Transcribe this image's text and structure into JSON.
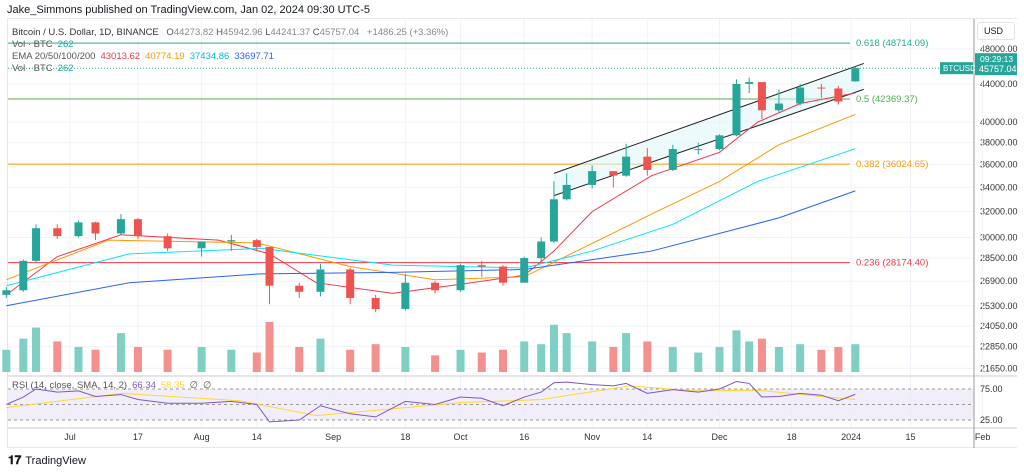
{
  "header": {
    "published": "Jake_Simmons published on TradingView.com, Jan 02, 2024 09:30 UTC-5"
  },
  "legend": {
    "symbol": "Bitcoin / U.S. Dollar, 1D, BINANCE",
    "o_label": "O",
    "o": "44273.82",
    "h_label": "H",
    "h": "45942.96",
    "l_label": "L",
    "l": "44241.37",
    "c_label": "C",
    "c": "45757.04",
    "change": "+1486.25 (+3.36%)",
    "vol1_label": "Vol · BTC",
    "vol1": "262",
    "ema_label": "EMA 20/50/100/200",
    "ema20": "43013.62",
    "ema50": "40774.19",
    "ema100": "37434.86",
    "ema200": "33697.71",
    "vol2_label": "Vol · BTC",
    "vol2": "262",
    "rsi_label": "RSI (14, close, SMA, 14, 2)",
    "rsi": "66.34",
    "rsi_sma": "58.35",
    "na1": "∅",
    "na2": "∅"
  },
  "price_axis": {
    "currency": "USD",
    "ticks": [
      "48000.00",
      "44000.00",
      "40000.00",
      "38000.00",
      "36000.00",
      "34000.00",
      "32000.00",
      "30000.00",
      "28500.00",
      "26900.00",
      "25300.00",
      "24050.00",
      "22850.00",
      "21650.00"
    ],
    "rsi_ticks": [
      "75.00",
      "25.00"
    ],
    "last_symbol": "BTCUSD",
    "last_price": "45757.04",
    "countdown": "09:29:13"
  },
  "time_axis": {
    "ticks": [
      [
        "2023-07-01",
        "Jul"
      ],
      [
        "2023-07-17",
        "17"
      ],
      [
        "2023-08-01",
        "Aug"
      ],
      [
        "2023-08-14",
        "14"
      ],
      [
        "2023-09-01",
        "Sep"
      ],
      [
        "2023-09-18",
        "18"
      ],
      [
        "2023-10-01",
        "Oct"
      ],
      [
        "2023-10-16",
        "16"
      ],
      [
        "2023-11-01",
        "Nov"
      ],
      [
        "2023-11-14",
        "14"
      ],
      [
        "2023-12-01",
        "Dec"
      ],
      [
        "2023-12-18",
        "18"
      ],
      [
        "2024-01-01",
        "2024"
      ],
      [
        "2024-01-15",
        "15"
      ],
      [
        "2024-02-01",
        "Feb"
      ]
    ]
  },
  "footer": {
    "brand": "TradingView"
  },
  "colors": {
    "up": "#26a69a",
    "down": "#ef5350",
    "ema20": "#f23645",
    "ema50": "#ff9800",
    "ema100": "#00e5ff",
    "ema200": "#2962ff",
    "rsi": "#7e57c2",
    "rsi_sma": "#fdd835"
  },
  "chart_data": {
    "type": "candlestick",
    "scale": "log",
    "ylim": [
      21650,
      50000
    ],
    "xlim": [
      "2023-06-15",
      "2024-02-04"
    ],
    "grid": true,
    "candles_columns": [
      "date",
      "open",
      "high",
      "low",
      "close",
      "volume",
      "rsi"
    ],
    "candles": [
      [
        "2023-06-16",
        26000,
        26500,
        25800,
        26300,
        40,
        50
      ],
      [
        "2023-06-20",
        26300,
        28400,
        26200,
        28300,
        60,
        62
      ],
      [
        "2023-06-23",
        28300,
        31000,
        28200,
        30700,
        80,
        75
      ],
      [
        "2023-06-28",
        30700,
        31000,
        29900,
        30100,
        55,
        70
      ],
      [
        "2023-07-03",
        30100,
        31300,
        30000,
        31150,
        45,
        72
      ],
      [
        "2023-07-07",
        31150,
        31200,
        29800,
        30300,
        40,
        63
      ],
      [
        "2023-07-13",
        30300,
        31800,
        30200,
        31400,
        70,
        66
      ],
      [
        "2023-07-17",
        31400,
        31500,
        29900,
        30100,
        45,
        58
      ],
      [
        "2023-07-24",
        30100,
        30300,
        29000,
        29200,
        40,
        52
      ],
      [
        "2023-08-01",
        29200,
        29700,
        28600,
        29700,
        45,
        52
      ],
      [
        "2023-08-08",
        29700,
        30200,
        29000,
        29800,
        40,
        55
      ],
      [
        "2023-08-14",
        29800,
        29900,
        29000,
        29300,
        35,
        50
      ],
      [
        "2023-08-17",
        29300,
        29300,
        25400,
        26600,
        90,
        22
      ],
      [
        "2023-08-24",
        26600,
        26800,
        25800,
        26200,
        45,
        25
      ],
      [
        "2023-08-29",
        26200,
        28100,
        25900,
        27700,
        60,
        48
      ],
      [
        "2023-09-05",
        27700,
        27800,
        25400,
        25800,
        40,
        35
      ],
      [
        "2023-09-11",
        25800,
        26000,
        24900,
        25100,
        50,
        30
      ],
      [
        "2023-09-18",
        25100,
        27400,
        25000,
        26800,
        45,
        55
      ],
      [
        "2023-09-25",
        26800,
        26900,
        26100,
        26300,
        30,
        50
      ],
      [
        "2023-10-01",
        26300,
        28100,
        26200,
        28000,
        40,
        62
      ],
      [
        "2023-10-06",
        28000,
        28300,
        27200,
        27900,
        35,
        60
      ],
      [
        "2023-10-11",
        27900,
        28000,
        26600,
        26800,
        40,
        48
      ],
      [
        "2023-10-16",
        26800,
        28600,
        26800,
        28500,
        55,
        62
      ],
      [
        "2023-10-20",
        28500,
        30000,
        28200,
        29700,
        50,
        70
      ],
      [
        "2023-10-23",
        29700,
        34500,
        29600,
        33000,
        85,
        85
      ],
      [
        "2023-10-26",
        33000,
        35200,
        32900,
        34200,
        70,
        86
      ],
      [
        "2023-11-01",
        34200,
        35900,
        33900,
        35400,
        55,
        82
      ],
      [
        "2023-11-06",
        35400,
        35300,
        34000,
        35000,
        45,
        80
      ],
      [
        "2023-11-09",
        35000,
        37900,
        34900,
        36700,
        70,
        84
      ],
      [
        "2023-11-14",
        36700,
        37500,
        35000,
        35500,
        55,
        68
      ],
      [
        "2023-11-20",
        35500,
        37800,
        35400,
        37400,
        45,
        74
      ],
      [
        "2023-11-26",
        37400,
        38000,
        36900,
        37400,
        35,
        70
      ],
      [
        "2023-12-01",
        37400,
        38800,
        37300,
        38700,
        45,
        75
      ],
      [
        "2023-12-05",
        38700,
        44500,
        38600,
        44000,
        75,
        87
      ],
      [
        "2023-12-08",
        44000,
        44700,
        43000,
        44200,
        55,
        84
      ],
      [
        "2023-12-11",
        44200,
        44000,
        40300,
        41200,
        60,
        62
      ],
      [
        "2023-12-15",
        41200,
        43400,
        41000,
        41900,
        45,
        63
      ],
      [
        "2023-12-20",
        41900,
        44000,
        41700,
        43600,
        50,
        68
      ],
      [
        "2023-12-25",
        43600,
        44000,
        42500,
        43500,
        40,
        65
      ],
      [
        "2023-12-29",
        43500,
        43800,
        41800,
        42100,
        45,
        56
      ],
      [
        "2024-01-02",
        44273.82,
        45942.96,
        44241.37,
        45757.04,
        50,
        66.34
      ]
    ],
    "ema": [
      {
        "name": "EMA 20",
        "color": "#f23645",
        "points": [
          [
            "2023-06-16",
            26000
          ],
          [
            "2023-06-28",
            28600
          ],
          [
            "2023-07-13",
            30200
          ],
          [
            "2023-08-05",
            29800
          ],
          [
            "2023-08-17",
            28800
          ],
          [
            "2023-08-28",
            26800
          ],
          [
            "2023-09-15",
            26100
          ],
          [
            "2023-10-01",
            26700
          ],
          [
            "2023-10-16",
            27300
          ],
          [
            "2023-10-23",
            29000
          ],
          [
            "2023-11-01",
            32000
          ],
          [
            "2023-11-15",
            35000
          ],
          [
            "2023-12-01",
            37100
          ],
          [
            "2023-12-10",
            40000
          ],
          [
            "2023-12-20",
            41900
          ],
          [
            "2024-01-02",
            43013.62
          ]
        ]
      },
      {
        "name": "EMA 50",
        "color": "#ff9800",
        "points": [
          [
            "2023-06-16",
            27000
          ],
          [
            "2023-07-10",
            29800
          ],
          [
            "2023-08-14",
            29600
          ],
          [
            "2023-09-05",
            27900
          ],
          [
            "2023-09-25",
            27000
          ],
          [
            "2023-10-16",
            27200
          ],
          [
            "2023-10-25",
            28500
          ],
          [
            "2023-11-15",
            31800
          ],
          [
            "2023-12-01",
            34500
          ],
          [
            "2023-12-15",
            37800
          ],
          [
            "2024-01-02",
            40774.19
          ]
        ]
      },
      {
        "name": "EMA 100",
        "color": "#00e5ff",
        "points": [
          [
            "2023-06-16",
            26600
          ],
          [
            "2023-07-15",
            28800
          ],
          [
            "2023-08-15",
            29200
          ],
          [
            "2023-09-15",
            28000
          ],
          [
            "2023-10-16",
            27800
          ],
          [
            "2023-11-01",
            29000
          ],
          [
            "2023-11-20",
            31000
          ],
          [
            "2023-12-10",
            34500
          ],
          [
            "2024-01-02",
            37434.86
          ]
        ]
      },
      {
        "name": "EMA 200",
        "color": "#2962ff",
        "points": [
          [
            "2023-06-16",
            25300
          ],
          [
            "2023-07-15",
            26800
          ],
          [
            "2023-08-15",
            27400
          ],
          [
            "2023-09-15",
            27500
          ],
          [
            "2023-10-16",
            27700
          ],
          [
            "2023-11-15",
            29000
          ],
          [
            "2023-12-15",
            31500
          ],
          [
            "2024-01-02",
            33697.71
          ]
        ]
      }
    ],
    "rsi_sma": [
      [
        "2023-06-16",
        45
      ],
      [
        "2023-07-13",
        68
      ],
      [
        "2023-08-10",
        56
      ],
      [
        "2023-08-28",
        32
      ],
      [
        "2023-10-01",
        53
      ],
      [
        "2023-10-20",
        58
      ],
      [
        "2023-11-10",
        80
      ],
      [
        "2023-11-25",
        72
      ],
      [
        "2023-12-10",
        73
      ],
      [
        "2023-12-25",
        63
      ],
      [
        "2024-01-02",
        58.35
      ]
    ],
    "fib": [
      {
        "level": "0.618",
        "price": 48714.09,
        "color": "#22ab94"
      },
      {
        "level": "0.5",
        "price": 42369.37,
        "color": "#4caf50"
      },
      {
        "level": "0.382",
        "price": 36024.65,
        "color": "#ff9800"
      },
      {
        "level": "0.236",
        "price": 28174.4,
        "color": "#f23645"
      }
    ],
    "channel": {
      "upper": [
        [
          "2023-10-23",
          35200
        ],
        [
          "2024-01-04",
          46300
        ]
      ],
      "lower": [
        [
          "2023-10-23",
          33300
        ],
        [
          "2024-01-04",
          43400
        ]
      ]
    }
  }
}
